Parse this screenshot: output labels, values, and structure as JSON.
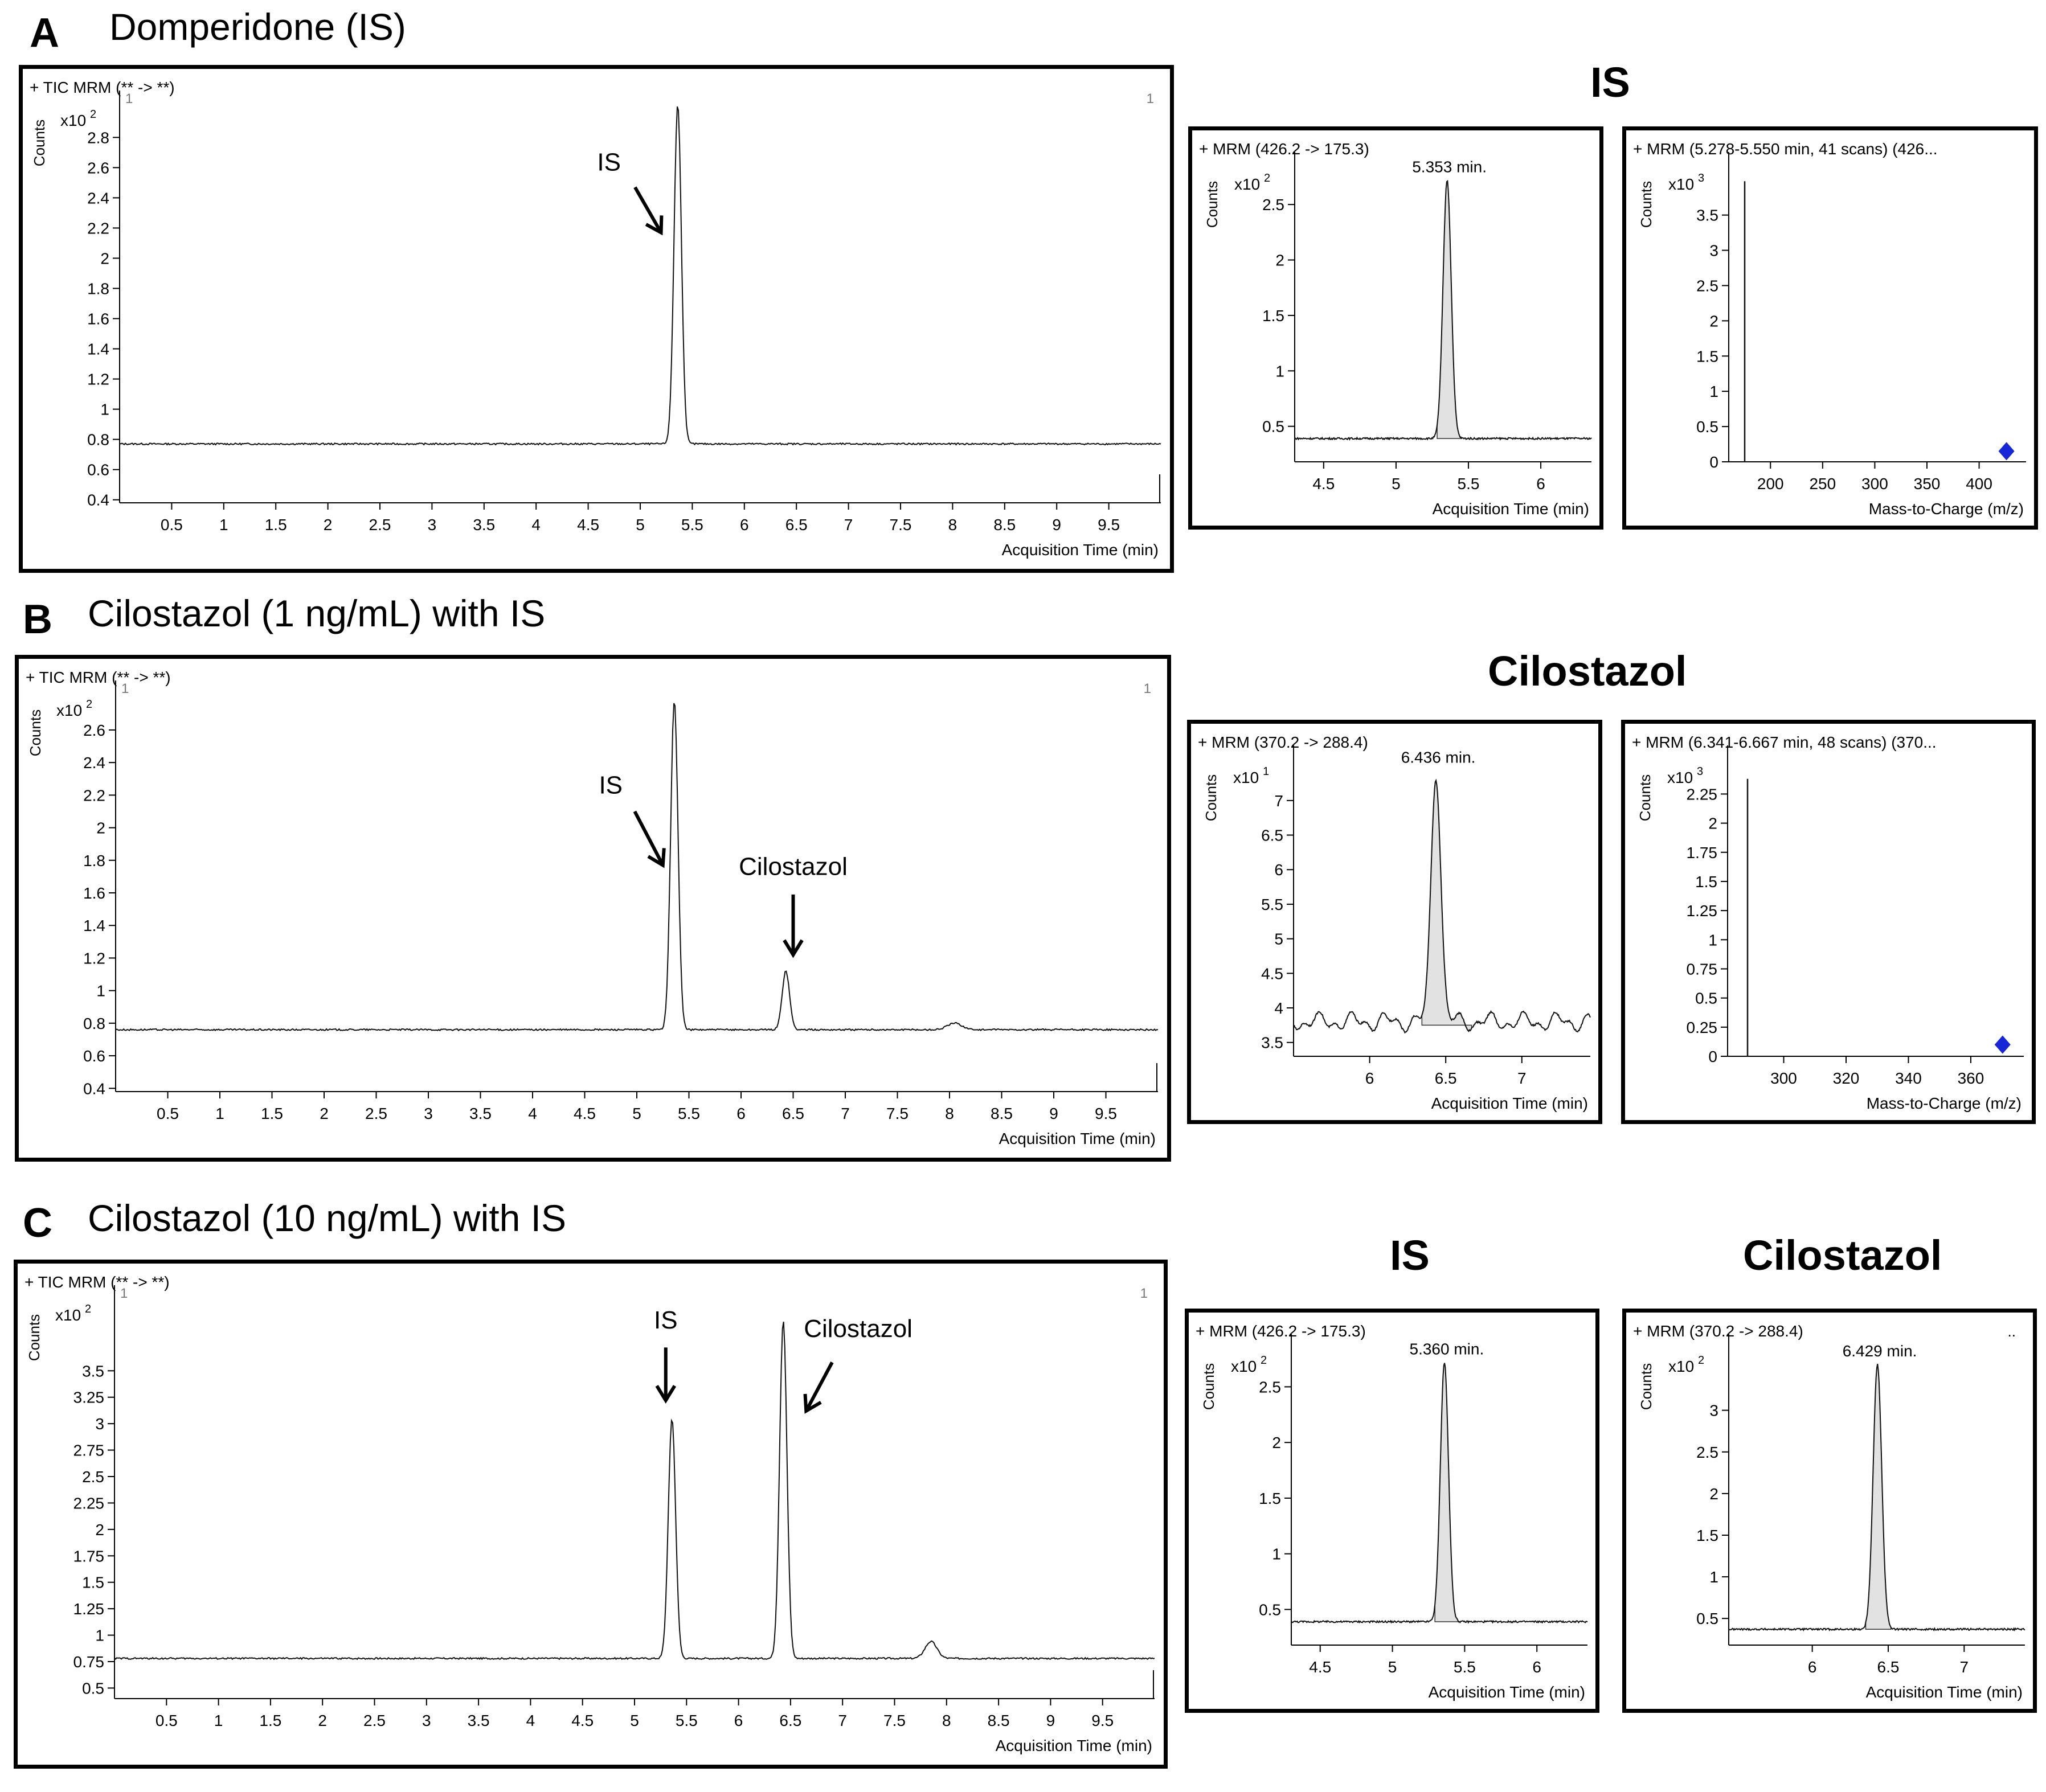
{
  "headings": {
    "A": {
      "letter": "A",
      "title": "Domperidone (IS)"
    },
    "B": {
      "letter": "B",
      "title": "Cilostazol (1 ng/mL) with IS"
    },
    "C": {
      "letter": "C",
      "title": "Cilostazol (10 ng/mL) with IS"
    },
    "A_side": "IS",
    "B_side": "Cilostazol",
    "C_side_left": "IS",
    "C_side_right": "Cilostazol"
  },
  "chart_data": [
    {
      "id": "A-tic",
      "type": "line",
      "header": "+ TIC MRM (** -> **)",
      "ylabel": "Counts",
      "multiplier_base": "x10",
      "multiplier_exp": "2",
      "corner_left": "1",
      "corner_right": "1",
      "xlabel": "Acquisition Time (min)",
      "xlim": [
        0,
        10
      ],
      "ylim": [
        0.38,
        3.02
      ],
      "xticks": [
        "0.5",
        "1",
        "1.5",
        "2",
        "2.5",
        "3",
        "3.5",
        "4",
        "4.5",
        "5",
        "5.5",
        "6",
        "6.5",
        "7",
        "7.5",
        "8",
        "8.5",
        "9",
        "9.5"
      ],
      "yticks": [
        "0.4",
        "0.6",
        "0.8",
        "1",
        "1.2",
        "1.4",
        "1.6",
        "1.8",
        "2",
        "2.2",
        "2.4",
        "2.6",
        "2.8"
      ],
      "baseline": 0.77,
      "peaks": [
        {
          "x": 5.36,
          "height": 2.25,
          "width": 0.05
        }
      ],
      "annotations": [
        {
          "text": "IS",
          "text_x": 4.7,
          "text_y": 2.58,
          "arrow_from": [
            4.95,
            2.47
          ],
          "arrow_to": [
            5.2,
            2.17
          ]
        }
      ]
    },
    {
      "id": "A-mrm",
      "type": "line",
      "header": "+ MRM (426.2 -> 175.3)",
      "ylabel": "Counts",
      "multiplier_base": "x10",
      "multiplier_exp": "2",
      "xlabel": "Acquisition Time (min)",
      "xlim": [
        4.3,
        6.35
      ],
      "ylim": [
        0.18,
        2.85
      ],
      "xticks": [
        "4.5",
        "5",
        "5.5",
        "6"
      ],
      "yticks": [
        "0.5",
        "1",
        "1.5",
        "2",
        "2.5"
      ],
      "baseline": 0.39,
      "peaks": [
        {
          "x": 5.353,
          "height": 2.33,
          "width": 0.04
        }
      ],
      "peak_label": "5.353 min.",
      "shade": [
        5.28,
        5.45
      ]
    },
    {
      "id": "A-ms",
      "type": "bar",
      "header": "+ MRM (5.278-5.550 min, 41 scans) (426...",
      "ylabel": "Counts",
      "multiplier_base": "x10",
      "multiplier_exp": "3",
      "xlabel": "Mass-to-Charge (m/z)",
      "xlim": [
        160,
        445
      ],
      "ylim": [
        0,
        4.2
      ],
      "xticks": [
        "200",
        "250",
        "300",
        "350",
        "400"
      ],
      "yticks": [
        "0",
        "0.5",
        "1",
        "1.5",
        "2",
        "2.5",
        "3",
        "3.5"
      ],
      "bars": [
        {
          "x": 175.3,
          "value": 3.98
        }
      ],
      "precursor": {
        "x": 426.2,
        "value": 0.15
      }
    },
    {
      "id": "B-tic",
      "type": "line",
      "header": "+ TIC MRM (** -> **)",
      "ylabel": "Counts",
      "multiplier_base": "x10",
      "multiplier_exp": "2",
      "corner_left": "1",
      "corner_right": "1",
      "xlabel": "Acquisition Time (min)",
      "xlim": [
        0,
        10
      ],
      "ylim": [
        0.38,
        2.82
      ],
      "xticks": [
        "0.5",
        "1",
        "1.5",
        "2",
        "2.5",
        "3",
        "3.5",
        "4",
        "4.5",
        "5",
        "5.5",
        "6",
        "6.5",
        "7",
        "7.5",
        "8",
        "8.5",
        "9",
        "9.5"
      ],
      "yticks": [
        "0.4",
        "0.6",
        "0.8",
        "1",
        "1.2",
        "1.4",
        "1.6",
        "1.8",
        "2",
        "2.2",
        "2.4",
        "2.6"
      ],
      "baseline": 0.76,
      "peaks": [
        {
          "x": 5.36,
          "height": 2.02,
          "width": 0.05
        },
        {
          "x": 6.43,
          "height": 0.36,
          "width": 0.05
        },
        {
          "x": 8.05,
          "height": 0.04,
          "width": 0.1
        }
      ],
      "annotations": [
        {
          "text": "IS",
          "text_x": 4.75,
          "text_y": 2.21,
          "arrow_from": [
            4.98,
            2.1
          ],
          "arrow_to": [
            5.25,
            1.77
          ]
        },
        {
          "text": "Cilostazol",
          "text_x": 6.5,
          "text_y": 1.71,
          "arrow_from": [
            6.5,
            1.59
          ],
          "arrow_to": [
            6.5,
            1.22
          ]
        }
      ]
    },
    {
      "id": "B-mrm",
      "type": "line",
      "header": "+ MRM (370.2 -> 288.4)",
      "ylabel": "Counts",
      "multiplier_base": "x10",
      "multiplier_exp": "1",
      "xlabel": "Acquisition Time (min)",
      "xlim": [
        5.5,
        7.45
      ],
      "ylim": [
        3.3,
        7.6
      ],
      "xticks": [
        "6",
        "6.5",
        "7"
      ],
      "yticks": [
        "3.5",
        "4",
        "4.5",
        "5",
        "5.5",
        "6",
        "6.5",
        "7"
      ],
      "baseline": 3.8,
      "peaks": [
        {
          "x": 6.436,
          "height": 3.63,
          "width": 0.045
        }
      ],
      "peak_label": "6.436 min.",
      "shade": [
        6.34,
        6.67
      ]
    },
    {
      "id": "B-ms",
      "type": "bar",
      "header": "+ MRM (6.341-6.667 min, 48 scans) (370...",
      "ylabel": "Counts",
      "multiplier_base": "x10",
      "multiplier_exp": "3",
      "xlabel": "Mass-to-Charge (m/z)",
      "xlim": [
        282,
        377
      ],
      "ylim": [
        0,
        2.55
      ],
      "xticks": [
        "300",
        "320",
        "340",
        "360"
      ],
      "yticks": [
        "0",
        "0.25",
        "0.5",
        "0.75",
        "1",
        "1.25",
        "1.5",
        "1.75",
        "2",
        "2.25"
      ],
      "bars": [
        {
          "x": 288.4,
          "value": 2.38
        }
      ],
      "precursor": {
        "x": 370.2,
        "value": 0.1
      }
    },
    {
      "id": "C-tic",
      "type": "line",
      "header": "+ TIC MRM (** -> **)",
      "ylabel": "Counts",
      "multiplier_base": "x10",
      "multiplier_exp": "2",
      "corner_left": "1",
      "corner_right": "1",
      "xlabel": "Acquisition Time (min)",
      "xlim": [
        0,
        10
      ],
      "ylim": [
        0.4,
        4.18
      ],
      "xticks": [
        "0.5",
        "1",
        "1.5",
        "2",
        "2.5",
        "3",
        "3.5",
        "4",
        "4.5",
        "5",
        "5.5",
        "6",
        "6.5",
        "7",
        "7.5",
        "8",
        "8.5",
        "9",
        "9.5"
      ],
      "yticks": [
        "0.5",
        "0.75",
        "1",
        "1.25",
        "1.5",
        "1.75",
        "2",
        "2.25",
        "2.5",
        "2.75",
        "3",
        "3.25",
        "3.5"
      ],
      "baseline": 0.78,
      "peaks": [
        {
          "x": 5.36,
          "height": 2.27,
          "width": 0.05
        },
        {
          "x": 6.43,
          "height": 3.2,
          "width": 0.05
        },
        {
          "x": 7.85,
          "height": 0.16,
          "width": 0.08
        }
      ],
      "annotations": [
        {
          "text": "IS",
          "text_x": 5.3,
          "text_y": 3.9,
          "arrow_from": [
            5.3,
            3.72
          ],
          "arrow_to": [
            5.3,
            3.22
          ]
        },
        {
          "text": "Cilostazol",
          "text_x": 7.15,
          "text_y": 3.82,
          "arrow_from": [
            6.9,
            3.58
          ],
          "arrow_to": [
            6.65,
            3.12
          ]
        }
      ]
    },
    {
      "id": "C-mrm-is",
      "type": "line",
      "header": "+ MRM (426.2 -> 175.3)",
      "ylabel": "Counts",
      "multiplier_base": "x10",
      "multiplier_exp": "2",
      "xlabel": "Acquisition Time (min)",
      "xlim": [
        4.3,
        6.35
      ],
      "ylim": [
        0.18,
        2.85
      ],
      "xticks": [
        "4.5",
        "5",
        "5.5",
        "6"
      ],
      "yticks": [
        "0.5",
        "1",
        "1.5",
        "2",
        "2.5"
      ],
      "baseline": 0.39,
      "peaks": [
        {
          "x": 5.36,
          "height": 2.33,
          "width": 0.04
        }
      ],
      "peak_label": "5.360 min.",
      "shade": [
        5.29,
        5.46
      ]
    },
    {
      "id": "C-mrm-cil",
      "type": "line",
      "header": "+ MRM (370.2 -> 288.4)",
      "corner_right": "..",
      "ylabel": "Counts",
      "multiplier_base": "x10",
      "multiplier_exp": "2",
      "xlabel": "Acquisition Time (min)",
      "xlim": [
        5.45,
        7.4
      ],
      "ylim": [
        0.18,
        3.75
      ],
      "xticks": [
        "6",
        "6.5",
        "7"
      ],
      "yticks": [
        "0.5",
        "1",
        "1.5",
        "2",
        "2.5",
        "3"
      ],
      "baseline": 0.37,
      "peaks": [
        {
          "x": 6.429,
          "height": 3.18,
          "width": 0.04
        }
      ],
      "peak_label": "6.429 min.",
      "shade": [
        6.35,
        6.52
      ]
    }
  ]
}
